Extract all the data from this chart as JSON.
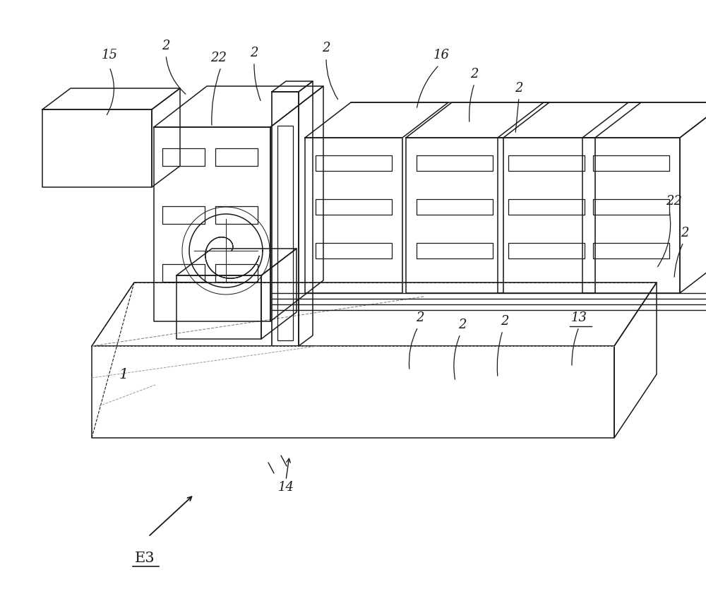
{
  "bg_color": "#ffffff",
  "line_color": "#1a1a1a",
  "lw": 1.1,
  "fig_width": 10.0,
  "fig_height": 8.68
}
